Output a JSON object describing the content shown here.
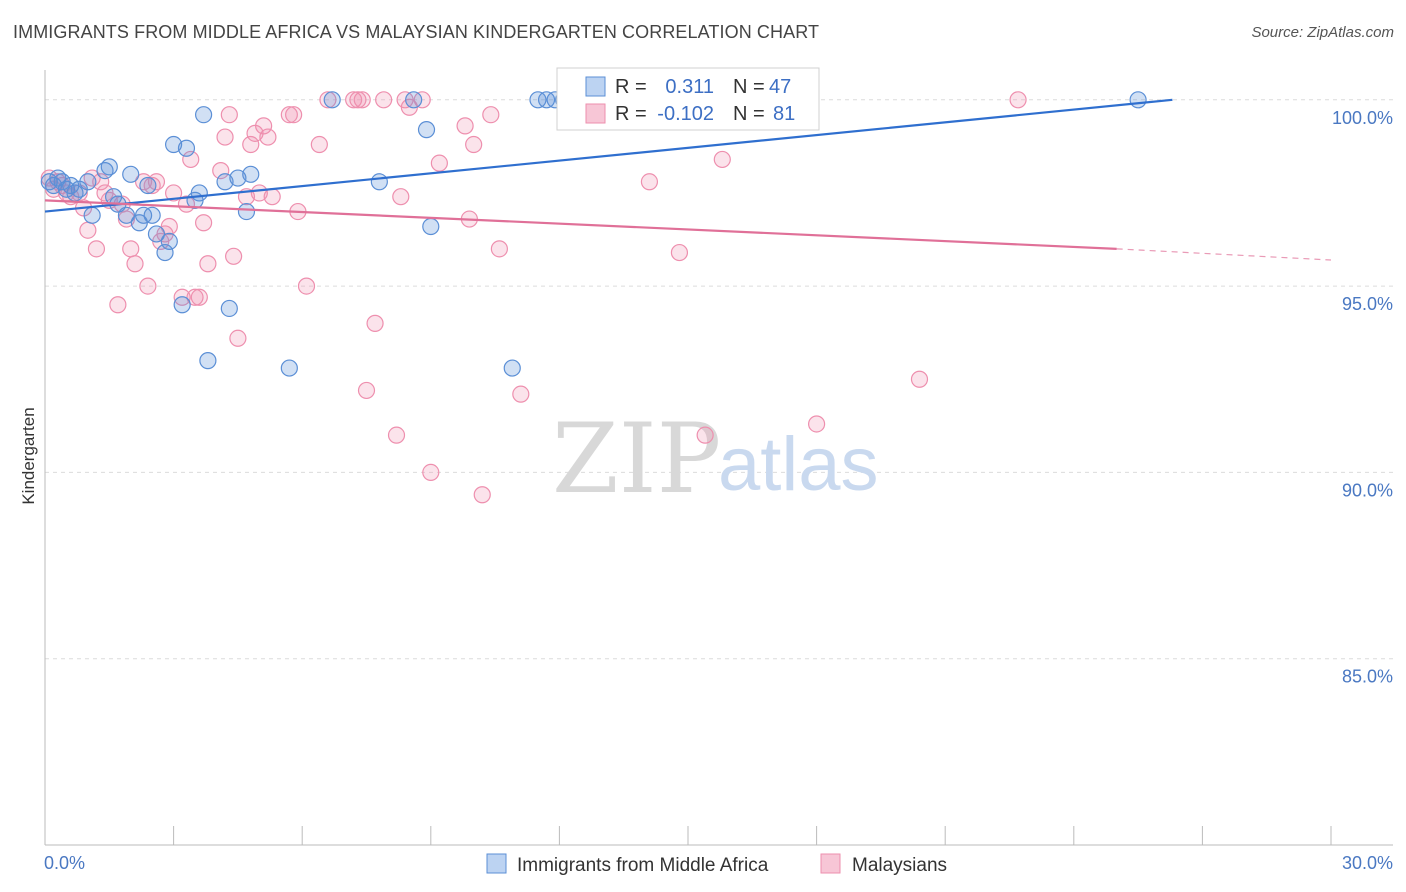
{
  "header": {
    "title": "IMMIGRANTS FROM MIDDLE AFRICA VS MALAYSIAN KINDERGARTEN CORRELATION CHART",
    "source": "Source: ZipAtlas.com"
  },
  "watermark": {
    "zip": "ZIP",
    "atlas": "atlas"
  },
  "legend": {
    "r_label": "R =",
    "n_label": "N =",
    "series_blue": {
      "r": "0.311",
      "n": "47"
    },
    "series_pink": {
      "r": "-0.102",
      "n": "81"
    }
  },
  "colors": {
    "blue": "#5b8fd6",
    "blue_line": "#2f6fcf",
    "pink": "#ee8fae",
    "pink_line": "#e07098",
    "tick_text": "#4a78c2"
  },
  "chart_data": {
    "type": "scatter",
    "title": "IMMIGRANTS FROM MIDDLE AFRICA VS MALAYSIAN KINDERGARTEN CORRELATION CHART",
    "xlabel": "",
    "ylabel": "Kindergarten",
    "xlim": [
      0,
      30
    ],
    "ylim": [
      80,
      100.8
    ],
    "x_tick_labels": [
      "0.0%",
      "30.0%"
    ],
    "y_ticks": [
      85,
      90,
      95,
      100
    ],
    "y_tick_labels": [
      "85.0%",
      "90.0%",
      "95.0%",
      "100.0%"
    ],
    "grid": true,
    "legend_placement": "top-center",
    "series": [
      {
        "name": "Immigrants from Middle Africa",
        "color": "#5b8fd6",
        "trend": {
          "x": [
            0,
            26.3
          ],
          "y": [
            97.0,
            100.0
          ]
        },
        "points": [
          [
            0.1,
            97.8
          ],
          [
            0.2,
            97.7
          ],
          [
            0.3,
            97.9
          ],
          [
            0.4,
            97.8
          ],
          [
            0.5,
            97.6
          ],
          [
            0.6,
            97.7
          ],
          [
            0.7,
            97.5
          ],
          [
            0.8,
            97.6
          ],
          [
            1.0,
            97.8
          ],
          [
            1.1,
            96.9
          ],
          [
            1.4,
            98.1
          ],
          [
            1.5,
            98.2
          ],
          [
            1.6,
            97.4
          ],
          [
            1.7,
            97.2
          ],
          [
            1.9,
            96.9
          ],
          [
            2.0,
            98.0
          ],
          [
            2.2,
            96.7
          ],
          [
            2.3,
            96.9
          ],
          [
            2.4,
            97.7
          ],
          [
            2.5,
            96.9
          ],
          [
            2.6,
            96.4
          ],
          [
            2.8,
            95.9
          ],
          [
            2.9,
            96.2
          ],
          [
            3.0,
            98.8
          ],
          [
            3.2,
            94.5
          ],
          [
            3.3,
            98.7
          ],
          [
            3.5,
            97.3
          ],
          [
            3.6,
            97.5
          ],
          [
            3.7,
            99.6
          ],
          [
            3.8,
            93.0
          ],
          [
            4.2,
            97.8
          ],
          [
            4.3,
            94.4
          ],
          [
            4.5,
            97.9
          ],
          [
            4.7,
            97.0
          ],
          [
            4.8,
            98.0
          ],
          [
            5.7,
            92.8
          ],
          [
            6.7,
            100.0
          ],
          [
            7.8,
            97.8
          ],
          [
            8.6,
            100.0
          ],
          [
            8.9,
            99.2
          ],
          [
            9.0,
            96.6
          ],
          [
            10.9,
            92.8
          ],
          [
            11.5,
            100.0
          ],
          [
            11.7,
            100.0
          ],
          [
            11.9,
            100.0
          ],
          [
            12.1,
            100.0
          ],
          [
            25.5,
            100.0
          ]
        ]
      },
      {
        "name": "Malaysians",
        "color": "#ee8fae",
        "trend": {
          "x": [
            0,
            25.0
          ],
          "y": [
            97.3,
            96.0
          ]
        },
        "trend_dashed": {
          "x": [
            25.0,
            30.0
          ],
          "y": [
            96.0,
            95.7
          ]
        },
        "points": [
          [
            0.1,
            97.9
          ],
          [
            0.2,
            97.6
          ],
          [
            0.3,
            97.8
          ],
          [
            0.4,
            97.7
          ],
          [
            0.5,
            97.5
          ],
          [
            0.6,
            97.4
          ],
          [
            0.8,
            97.5
          ],
          [
            0.9,
            97.1
          ],
          [
            1.0,
            96.5
          ],
          [
            1.1,
            97.9
          ],
          [
            1.2,
            96.0
          ],
          [
            1.3,
            97.8
          ],
          [
            1.4,
            97.5
          ],
          [
            1.5,
            97.3
          ],
          [
            1.7,
            94.5
          ],
          [
            1.8,
            97.2
          ],
          [
            1.9,
            96.8
          ],
          [
            2.0,
            96.0
          ],
          [
            2.1,
            95.6
          ],
          [
            2.3,
            97.8
          ],
          [
            2.4,
            95.0
          ],
          [
            2.5,
            97.7
          ],
          [
            2.6,
            97.8
          ],
          [
            2.7,
            96.2
          ],
          [
            2.8,
            96.4
          ],
          [
            2.9,
            96.6
          ],
          [
            3.0,
            97.5
          ],
          [
            3.2,
            94.7
          ],
          [
            3.3,
            97.2
          ],
          [
            3.4,
            98.4
          ],
          [
            3.5,
            94.7
          ],
          [
            3.6,
            94.7
          ],
          [
            3.7,
            96.7
          ],
          [
            3.8,
            95.6
          ],
          [
            4.1,
            98.1
          ],
          [
            4.2,
            99.0
          ],
          [
            4.3,
            99.6
          ],
          [
            4.4,
            95.8
          ],
          [
            4.5,
            93.6
          ],
          [
            4.7,
            97.4
          ],
          [
            4.8,
            98.8
          ],
          [
            4.9,
            99.1
          ],
          [
            5.0,
            97.5
          ],
          [
            5.1,
            99.3
          ],
          [
            5.2,
            99.0
          ],
          [
            5.3,
            97.4
          ],
          [
            5.7,
            99.6
          ],
          [
            5.8,
            99.6
          ],
          [
            5.9,
            97.0
          ],
          [
            6.1,
            95.0
          ],
          [
            6.4,
            98.8
          ],
          [
            6.6,
            100.0
          ],
          [
            7.2,
            100.0
          ],
          [
            7.3,
            100.0
          ],
          [
            7.4,
            100.0
          ],
          [
            7.5,
            92.2
          ],
          [
            7.7,
            94.0
          ],
          [
            7.9,
            100.0
          ],
          [
            8.2,
            91.0
          ],
          [
            8.3,
            97.4
          ],
          [
            8.4,
            100.0
          ],
          [
            8.5,
            99.8
          ],
          [
            8.8,
            100.0
          ],
          [
            9.0,
            90.0
          ],
          [
            9.2,
            98.3
          ],
          [
            9.8,
            99.3
          ],
          [
            9.9,
            96.8
          ],
          [
            10.0,
            98.8
          ],
          [
            10.2,
            89.4
          ],
          [
            10.4,
            99.6
          ],
          [
            10.6,
            96.0
          ],
          [
            11.1,
            92.1
          ],
          [
            14.1,
            97.8
          ],
          [
            14.5,
            100.0
          ],
          [
            14.8,
            95.9
          ],
          [
            15.2,
            100.0
          ],
          [
            15.4,
            91.0
          ],
          [
            15.8,
            98.4
          ],
          [
            18.0,
            91.3
          ],
          [
            20.4,
            92.5
          ],
          [
            22.7,
            100.0
          ]
        ]
      }
    ]
  },
  "bottom_legend": {
    "items": [
      {
        "label": "Immigrants from Middle Africa"
      },
      {
        "label": "Malaysians"
      }
    ]
  }
}
